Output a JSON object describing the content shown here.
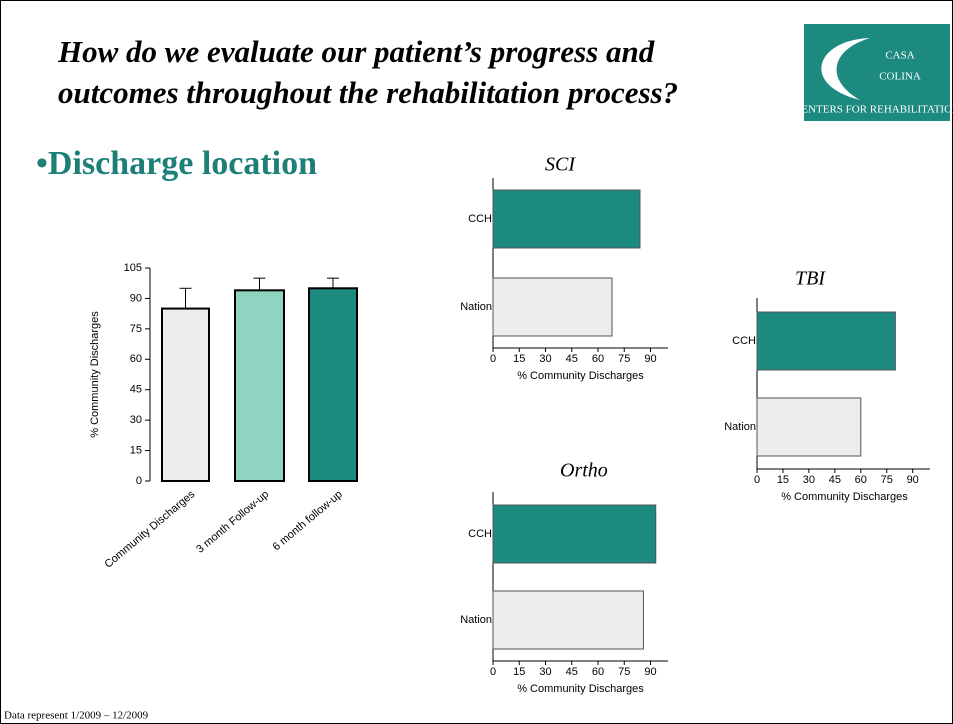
{
  "title": [
    "How do we evaluate our patient’s progress and",
    "outcomes throughout the rehabilitation process?"
  ],
  "logo": [
    "CASA",
    "COLINA",
    "CENTERS FOR REHABILITATION"
  ],
  "heading": "•Discharge location",
  "footnote": "Data represent 1/2009 – 12/2009",
  "chart_data": [
    {
      "type": "bar",
      "y_label": "% Community Discharges",
      "categories": [
        "Community Discharges",
        "3 month Follow-up",
        "6 month follow-up"
      ],
      "values": [
        85,
        94,
        95
      ],
      "errors": [
        10,
        6,
        5
      ],
      "colors": [
        "#ececec",
        "#8fd3c1",
        "#1d8a80"
      ],
      "ylim": [
        0,
        105
      ],
      "yticks": [
        0,
        15,
        30,
        45,
        60,
        75,
        90,
        105
      ]
    },
    {
      "type": "hbar",
      "title": "SCI",
      "x_label": "% Community Discharges",
      "categories": [
        "CCH",
        "Nation"
      ],
      "values": [
        84,
        68
      ],
      "colors": [
        "#1d8a80",
        "#ececec"
      ],
      "xlim": [
        0,
        100
      ],
      "xticks": [
        0,
        15,
        30,
        45,
        60,
        75,
        90
      ]
    },
    {
      "type": "hbar",
      "title": "TBI",
      "x_label": "% Community Discharges",
      "categories": [
        "CCH",
        "Nation"
      ],
      "values": [
        80,
        60
      ],
      "colors": [
        "#1d8a80",
        "#ececec"
      ],
      "xlim": [
        0,
        100
      ],
      "xticks": [
        0,
        15,
        30,
        45,
        60,
        75,
        90
      ]
    },
    {
      "type": "hbar",
      "title": "Ortho",
      "x_label": "% Community Discharges",
      "categories": [
        "CCH",
        "Nation"
      ],
      "values": [
        93,
        86
      ],
      "colors": [
        "#1d8a80",
        "#ececec"
      ],
      "xlim": [
        0,
        100
      ],
      "xticks": [
        0,
        15,
        30,
        45,
        60,
        75,
        90
      ]
    }
  ]
}
